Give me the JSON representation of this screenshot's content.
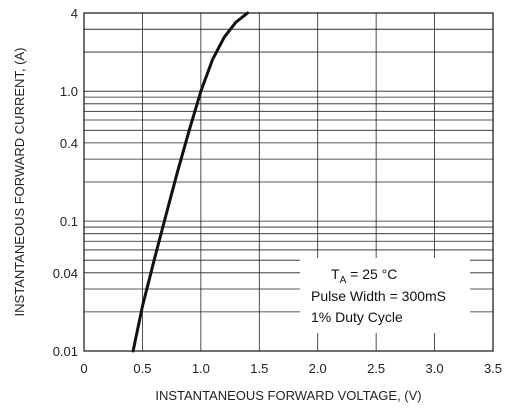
{
  "chart_data": {
    "type": "line",
    "xlabel": "INSTANTANEOUS FORWARD VOLTAGE, (V)",
    "ylabel": "INSTANTANEOUS FORWARD CURRENT, (A)",
    "xlim": [
      0,
      3.5
    ],
    "ylim": [
      0.01,
      4
    ],
    "yscale": "log",
    "grid": true,
    "x_ticks": [
      {
        "value": 0,
        "label": "0"
      },
      {
        "value": 0.5,
        "label": "0.5"
      },
      {
        "value": 1.0,
        "label": "1.0"
      },
      {
        "value": 1.5,
        "label": "1.5"
      },
      {
        "value": 2.0,
        "label": "2.0"
      },
      {
        "value": 2.5,
        "label": "2.5"
      },
      {
        "value": 3.0,
        "label": "3.0"
      },
      {
        "value": 3.5,
        "label": "3.5"
      }
    ],
    "y_ticks": [
      {
        "value": 0.01,
        "label": "0.01"
      },
      {
        "value": 0.04,
        "label": "0.04"
      },
      {
        "value": 0.1,
        "label": "0.1"
      },
      {
        "value": 0.4,
        "label": "0.4"
      },
      {
        "value": 1.0,
        "label": "1.0"
      },
      {
        "value": 4,
        "label": "4"
      }
    ],
    "series": [
      {
        "x": [
          0.42,
          0.5,
          0.6,
          0.7,
          0.8,
          0.9,
          1.0,
          1.1,
          1.2,
          1.3,
          1.4
        ],
        "y": [
          0.01,
          0.022,
          0.05,
          0.11,
          0.24,
          0.5,
          1.0,
          1.75,
          2.6,
          3.4,
          4.0
        ]
      }
    ],
    "annotations": {
      "temp_main": "T",
      "temp_sub": "A",
      "temp_value": " = 25 °C",
      "pulse": "Pulse Width = 300mS",
      "duty": "1% Duty Cycle"
    }
  }
}
